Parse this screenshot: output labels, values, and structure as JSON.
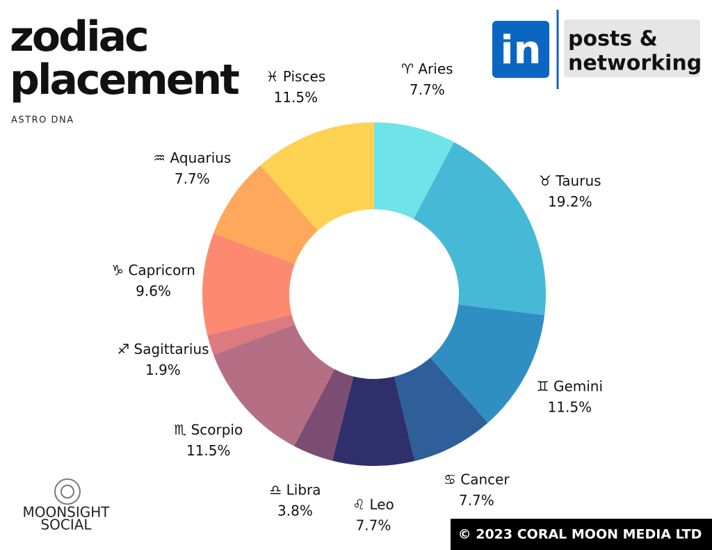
{
  "chart_data": {
    "type": "donut",
    "title": "zodiac placement",
    "subtitle": "ASTRO DNA",
    "categories": [
      "♈ Aries",
      "♉ Taurus",
      "♊ Gemini",
      "♋ Cancer",
      "♌ Leo",
      "♎ Libra",
      "♏ Scorpio",
      "♐ Sagittarius",
      "♑ Capricorn",
      "♒ Aquarius",
      "♓ Pisces"
    ],
    "values": [
      7.7,
      19.2,
      11.5,
      7.7,
      7.7,
      3.8,
      11.5,
      1.9,
      9.6,
      7.7,
      11.5
    ],
    "value_labels": [
      "7.7%",
      "19.2%",
      "11.5%",
      "7.7%",
      "7.7%",
      "3.8%",
      "11.5%",
      "1.9%",
      "9.6%",
      "7.7%",
      "11.5%"
    ],
    "colors": [
      "#6ee3e8",
      "#45b9d6",
      "#2f8fc2",
      "#2e5f98",
      "#2e2f6b",
      "#7d4c72",
      "#b56f85",
      "#db7b80",
      "#fd8a70",
      "#fda85a",
      "#fdd152"
    ]
  },
  "badge": {
    "icon": "in",
    "lines": [
      "posts &",
      "networking"
    ]
  },
  "logo": {
    "lines": [
      "MOONSIGHT",
      "SOCIAL"
    ]
  },
  "footer": "© 2023 CORAL MOON MEDIA LTD"
}
